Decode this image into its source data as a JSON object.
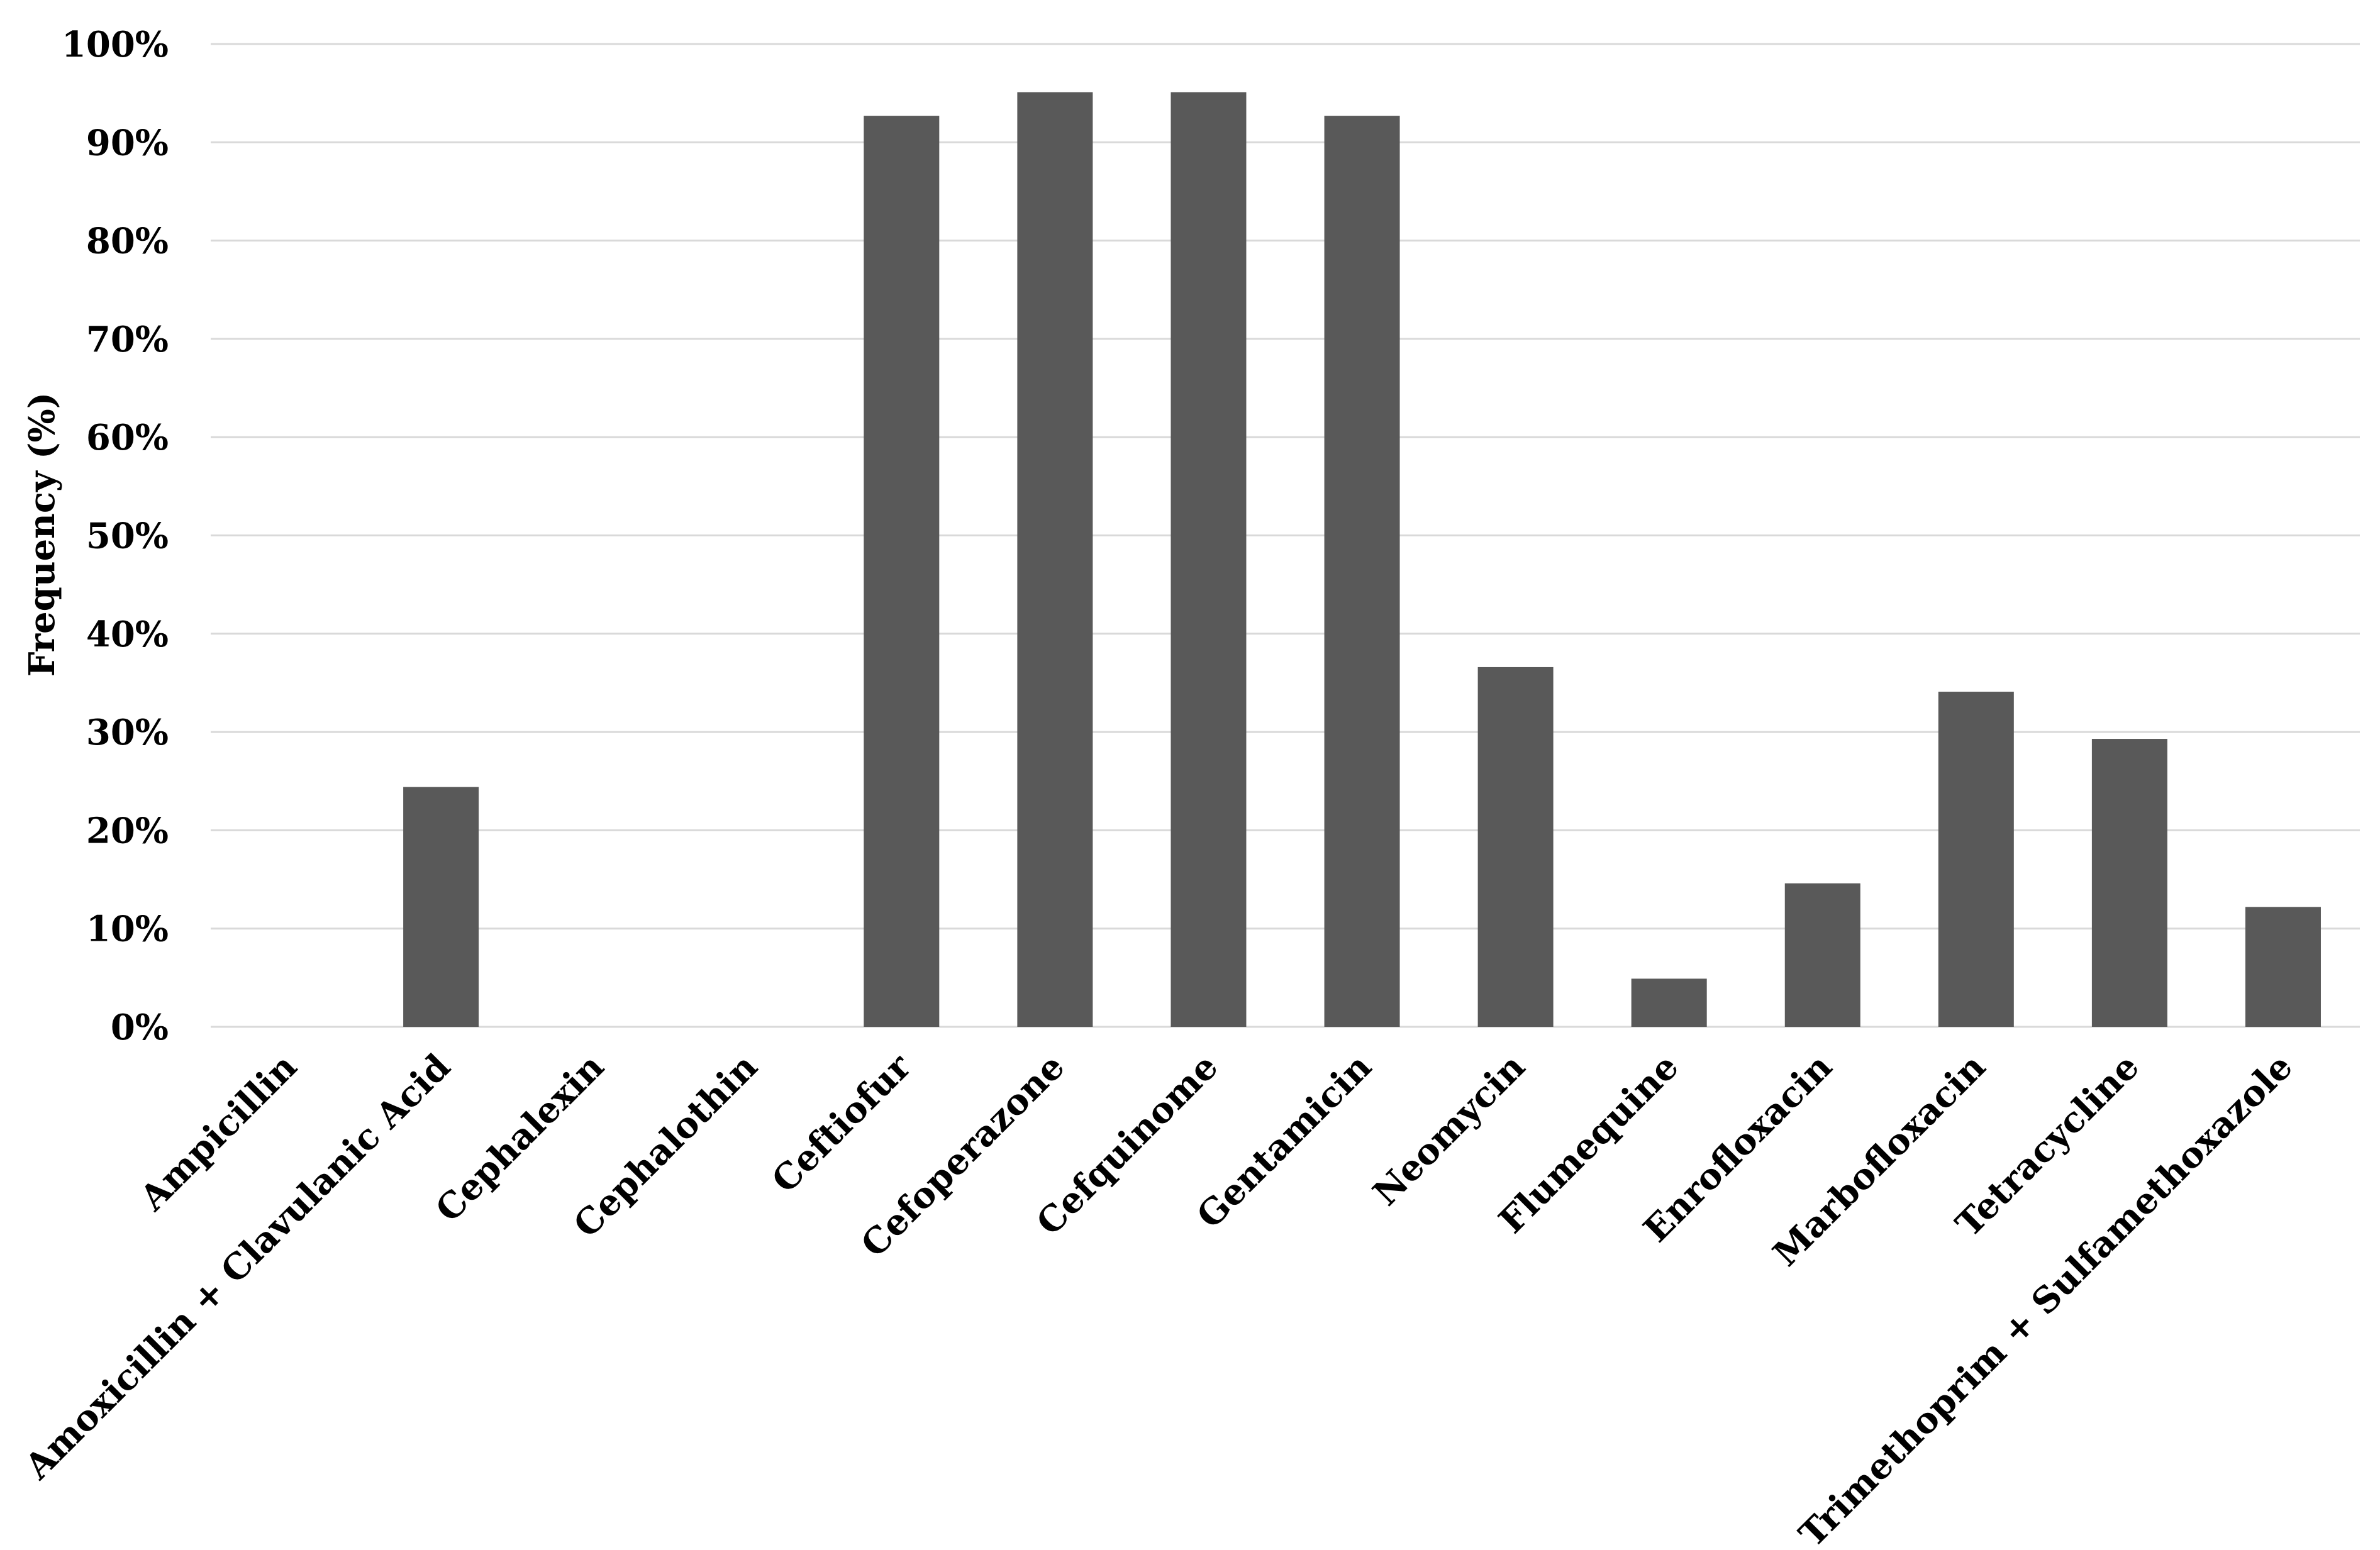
{
  "chart_data": {
    "type": "bar",
    "title": "",
    "xlabel": "",
    "ylabel": "Frequency (%)",
    "ylim": [
      0,
      100
    ],
    "yticks": [
      "0%",
      "10%",
      "20%",
      "30%",
      "40%",
      "50%",
      "60%",
      "70%",
      "80%",
      "90%",
      "100%"
    ],
    "ytick_values": [
      0,
      10,
      20,
      30,
      40,
      50,
      60,
      70,
      80,
      90,
      100
    ],
    "grid": true,
    "legend": "none",
    "bar_color": "#595959",
    "categories": [
      "Ampicillin",
      "Amoxicillin + Clavulanic Acid",
      "Cephalexin",
      "Cephalothin",
      "Ceftiofur",
      "Cefoperazone",
      "Cefquinome",
      "Gentamicin",
      "Neomycin",
      "Flumequine",
      "Enrofloxacin",
      "Marbofloxacin",
      "Tetracycline",
      "Trimethoprim + Sulfamethoxazole"
    ],
    "values": [
      0,
      24.4,
      0,
      0,
      92.7,
      95.1,
      95.1,
      92.7,
      36.6,
      4.9,
      14.6,
      34.1,
      29.3,
      12.2
    ]
  }
}
